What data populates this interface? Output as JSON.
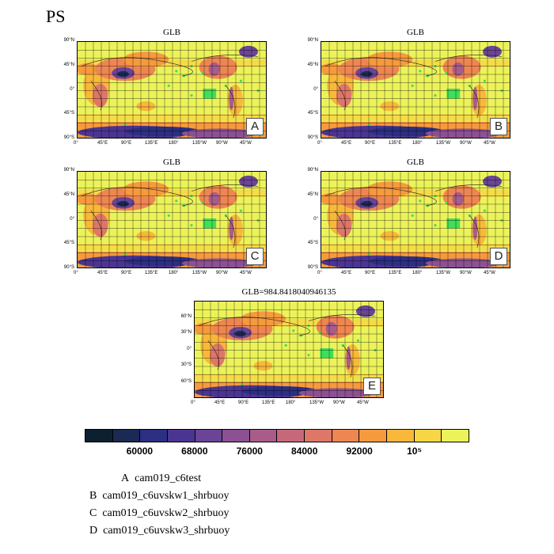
{
  "title": "PS",
  "panels": [
    {
      "id": "A",
      "title": "GLB",
      "letter": "A",
      "lat_labels": [
        "90°N",
        "45°N",
        "0°",
        "45°S",
        "90°S"
      ],
      "lon_labels": [
        "0°",
        "45°E",
        "90°E",
        "135°E",
        "180°",
        "135°W",
        "90°W",
        "45°W"
      ]
    },
    {
      "id": "B",
      "title": "GLB",
      "letter": "B",
      "lat_labels": [
        "90°N",
        "45°N",
        "0°",
        "45°S",
        "90°S"
      ],
      "lon_labels": [
        "0°",
        "45°E",
        "90°E",
        "135°E",
        "180°",
        "135°W",
        "90°W",
        "45°W"
      ]
    },
    {
      "id": "C",
      "title": "GLB",
      "letter": "C",
      "lat_labels": [
        "90°N",
        "45°N",
        "0°",
        "45°S",
        "90°S"
      ],
      "lon_labels": [
        "0°",
        "45°E",
        "90°E",
        "135°E",
        "180°",
        "135°W",
        "90°W",
        "45°W"
      ]
    },
    {
      "id": "D",
      "title": "GLB",
      "letter": "D",
      "lat_labels": [
        "90°N",
        "45°N",
        "0°",
        "45°S",
        "90°S"
      ],
      "lon_labels": [
        "0°",
        "45°E",
        "90°E",
        "135°E",
        "180°",
        "135°W",
        "90°W",
        "45°W"
      ]
    },
    {
      "id": "E",
      "title": "GLB=984.8418040946135",
      "letter": "E",
      "lat_labels": [
        "60°N",
        "30°N",
        "0°",
        "30°S",
        "60°S"
      ],
      "lon_labels": [
        "0°",
        "45°E",
        "90°E",
        "135°E",
        "180°",
        "135°W",
        "90°W",
        "45°W"
      ]
    }
  ],
  "colorbar": {
    "colors": [
      "#0d2030",
      "#1b2a55",
      "#2c2f82",
      "#4b3592",
      "#6a4596",
      "#8c5193",
      "#a95c8a",
      "#c7687a",
      "#de7768",
      "#ee8652",
      "#f69a3e",
      "#f9b83a",
      "#f6d645",
      "#ecf35a"
    ],
    "labels": [
      "60000",
      "68000",
      "76000",
      "84000",
      "92000",
      "10⁵"
    ]
  },
  "legend": [
    {
      "letter": "A",
      "name": "cam019_c6test"
    },
    {
      "letter": "B",
      "name": "cam019_c6uvskw1_shrbuoy"
    },
    {
      "letter": "C",
      "name": "cam019_c6uvskw2_shrbuoy"
    },
    {
      "letter": "D",
      "name": "cam019_c6uvskw3_shrbuoy"
    }
  ]
}
